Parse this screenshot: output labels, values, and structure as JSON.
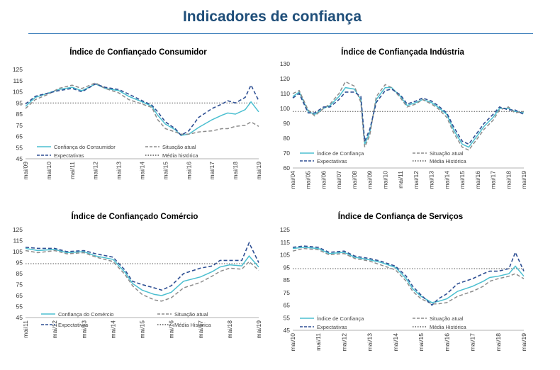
{
  "page": {
    "title": "Indicadores de confiança"
  },
  "colors": {
    "headline": "#1f4e79",
    "rule": "#2e75b6",
    "index": "#4bbfd0",
    "current": "#8c8c8c",
    "expectations": "#2e4f93",
    "average": "#595959"
  },
  "chart_data": [
    {
      "type": "line",
      "title": "Índice de Confiançado Consumidor",
      "ylim": [
        45,
        125
      ],
      "yticks": [
        45,
        55,
        65,
        75,
        85,
        95,
        105,
        115,
        125
      ],
      "xticks": [
        "mai/09",
        "mai/10",
        "mai/11",
        "mai/12",
        "mai/13",
        "mai/14",
        "mai/15",
        "mai/16",
        "mai/17",
        "mai/18",
        "mai/19"
      ],
      "x_range": [
        2009.33,
        2019.33
      ],
      "reference": {
        "name": "Média histórica",
        "value": 95
      },
      "series": [
        {
          "name": "Confiança do Consumidor",
          "style": "solid",
          "color": "#4bbfd0",
          "x": [
            2009.33,
            2009.75,
            2010.33,
            2010.75,
            2011.33,
            2011.75,
            2012.33,
            2012.75,
            2013.33,
            2013.75,
            2014.33,
            2014.75,
            2015.0,
            2015.33,
            2015.75,
            2016.0,
            2016.33,
            2016.75,
            2017.33,
            2017.75,
            2018.0,
            2018.33,
            2018.75,
            2019.0,
            2019.33
          ],
          "values": [
            92,
            100,
            104,
            107,
            109,
            106,
            112,
            108,
            106,
            101,
            96,
            92,
            84,
            76,
            71,
            66,
            67,
            73,
            80,
            84,
            86,
            85,
            89,
            96,
            87
          ]
        },
        {
          "name": "Situação atual",
          "style": "dashed",
          "color": "#8c8c8c",
          "x": [
            2009.33,
            2009.75,
            2010.33,
            2010.75,
            2011.33,
            2011.75,
            2012.33,
            2012.75,
            2013.33,
            2013.75,
            2014.33,
            2014.75,
            2015.0,
            2015.33,
            2015.75,
            2016.0,
            2016.33,
            2016.75,
            2017.33,
            2017.75,
            2018.0,
            2018.33,
            2018.75,
            2019.0,
            2019.33
          ],
          "values": [
            90,
            98,
            103,
            108,
            111,
            108,
            113,
            108,
            104,
            98,
            94,
            91,
            80,
            72,
            69,
            67,
            67,
            69,
            70,
            72,
            72,
            74,
            75,
            78,
            74
          ]
        },
        {
          "name": "Expectativas",
          "style": "dashed",
          "color": "#2e4f93",
          "x": [
            2009.33,
            2009.75,
            2010.33,
            2010.75,
            2011.33,
            2011.75,
            2012.33,
            2012.75,
            2013.33,
            2013.75,
            2014.33,
            2014.75,
            2015.0,
            2015.33,
            2015.75,
            2016.0,
            2016.33,
            2016.75,
            2017.33,
            2017.75,
            2018.0,
            2018.33,
            2018.75,
            2019.0,
            2019.33
          ],
          "values": [
            94,
            101,
            104,
            106,
            108,
            105,
            112,
            109,
            107,
            103,
            97,
            93,
            87,
            78,
            72,
            66,
            70,
            82,
            90,
            94,
            97,
            95,
            100,
            111,
            97
          ]
        }
      ]
    },
    {
      "type": "line",
      "title": "Índice de Confiançada Indústria",
      "ylim": [
        60,
        130
      ],
      "yticks": [
        60,
        70,
        80,
        90,
        100,
        110,
        120,
        130
      ],
      "xticks": [
        "mai/04",
        "mai/05",
        "mai/06",
        "mai/07",
        "mai/08",
        "mai/09",
        "mai/10",
        "mai/11",
        "mai/12",
        "mai/13",
        "mai/14",
        "mai/15",
        "mai/16",
        "mai/17",
        "mai/18",
        "mai/19"
      ],
      "x_range": [
        2004.33,
        2019.33
      ],
      "reference": {
        "name": "Média Histórica",
        "value": 98
      },
      "series": [
        {
          "name": "Índice de Confiança",
          "style": "solid",
          "color": "#4bbfd0",
          "x": [
            2004.33,
            2004.75,
            2005.33,
            2005.75,
            2006.33,
            2006.75,
            2007.33,
            2007.75,
            2008.33,
            2008.75,
            2009.0,
            2009.33,
            2009.75,
            2010.33,
            2010.75,
            2011.33,
            2011.75,
            2012.33,
            2012.75,
            2013.33,
            2013.75,
            2014.33,
            2014.75,
            2015.33,
            2015.75,
            2016.33,
            2016.75,
            2017.33,
            2017.75,
            2018.33,
            2018.75,
            2019.33
          ],
          "values": [
            108,
            111,
            98,
            96,
            100,
            102,
            108,
            114,
            113,
            106,
            76,
            84,
            106,
            114,
            114,
            108,
            102,
            104,
            106,
            104,
            101,
            96,
            86,
            76,
            74,
            82,
            88,
            94,
            100,
            100,
            98,
            97
          ]
        },
        {
          "name": "Situação atual",
          "style": "dashed",
          "color": "#8c8c8c",
          "x": [
            2004.33,
            2004.75,
            2005.33,
            2005.75,
            2006.33,
            2006.75,
            2007.33,
            2007.75,
            2008.33,
            2008.75,
            2009.0,
            2009.33,
            2009.75,
            2010.33,
            2010.75,
            2011.33,
            2011.75,
            2012.33,
            2012.75,
            2013.33,
            2013.75,
            2014.33,
            2014.75,
            2015.33,
            2015.75,
            2016.33,
            2016.75,
            2017.33,
            2017.75,
            2018.33,
            2018.75,
            2019.33
          ],
          "values": [
            110,
            112,
            99,
            95,
            100,
            103,
            110,
            118,
            115,
            104,
            74,
            82,
            108,
            116,
            114,
            107,
            101,
            103,
            106,
            103,
            100,
            94,
            84,
            74,
            72,
            80,
            86,
            92,
            99,
            101,
            97,
            98
          ]
        },
        {
          "name": "Expectativas",
          "style": "dashed",
          "color": "#2e4f93",
          "x": [
            2004.33,
            2004.75,
            2005.33,
            2005.75,
            2006.33,
            2006.75,
            2007.33,
            2007.75,
            2008.33,
            2008.75,
            2009.0,
            2009.33,
            2009.75,
            2010.33,
            2010.75,
            2011.33,
            2011.75,
            2012.33,
            2012.75,
            2013.33,
            2013.75,
            2014.33,
            2014.75,
            2015.33,
            2015.75,
            2016.33,
            2016.75,
            2017.33,
            2017.75,
            2018.33,
            2018.75,
            2019.33
          ],
          "values": [
            107,
            110,
            97,
            97,
            101,
            101,
            106,
            111,
            111,
            108,
            78,
            86,
            104,
            112,
            113,
            109,
            103,
            105,
            107,
            105,
            102,
            97,
            88,
            78,
            76,
            84,
            90,
            96,
            101,
            99,
            99,
            96
          ]
        }
      ]
    },
    {
      "type": "line",
      "title": "Índice de Confiançado Comércio",
      "ylim": [
        45,
        125
      ],
      "yticks": [
        45,
        55,
        65,
        75,
        85,
        95,
        105,
        115,
        125
      ],
      "xticks": [
        "mai/11",
        "mai/12",
        "mai/13",
        "mai/14",
        "mai/15",
        "mai/16",
        "mai/17",
        "mai/18",
        "mai/19"
      ],
      "x_range": [
        2011.33,
        2019.33
      ],
      "reference": {
        "name": "Média Histórica",
        "value": 94
      },
      "series": [
        {
          "name": "Confiança do Comércio",
          "style": "solid",
          "color": "#4bbfd0",
          "x": [
            2011.33,
            2011.75,
            2012.33,
            2012.75,
            2013.33,
            2013.75,
            2014.33,
            2014.75,
            2015.0,
            2015.33,
            2015.75,
            2016.0,
            2016.33,
            2016.75,
            2017.33,
            2017.75,
            2018.0,
            2018.33,
            2018.75,
            2019.0,
            2019.33
          ],
          "values": [
            108,
            106,
            107,
            104,
            105,
            101,
            98,
            86,
            76,
            70,
            66,
            65,
            68,
            78,
            82,
            87,
            91,
            93,
            92,
            101,
            91
          ]
        },
        {
          "name": "Situação atual",
          "style": "dashed",
          "color": "#8c8c8c",
          "x": [
            2011.33,
            2011.75,
            2012.33,
            2012.75,
            2013.33,
            2013.75,
            2014.33,
            2014.75,
            2015.0,
            2015.33,
            2015.75,
            2016.0,
            2016.33,
            2016.75,
            2017.33,
            2017.75,
            2018.0,
            2018.33,
            2018.75,
            2019.0,
            2019.33
          ],
          "values": [
            106,
            104,
            106,
            103,
            104,
            100,
            96,
            84,
            74,
            66,
            61,
            60,
            63,
            72,
            77,
            83,
            87,
            90,
            89,
            96,
            88
          ]
        },
        {
          "name": "Expectativas",
          "style": "dashed",
          "color": "#2e4f93",
          "x": [
            2011.33,
            2011.75,
            2012.33,
            2012.75,
            2013.33,
            2013.75,
            2014.33,
            2014.75,
            2015.0,
            2015.33,
            2015.75,
            2016.0,
            2016.33,
            2016.75,
            2017.33,
            2017.75,
            2018.0,
            2018.33,
            2018.75,
            2019.0,
            2019.33
          ],
          "values": [
            109,
            108,
            108,
            105,
            106,
            103,
            100,
            88,
            78,
            75,
            72,
            70,
            74,
            85,
            90,
            92,
            97,
            97,
            97,
            113,
            95
          ]
        }
      ]
    },
    {
      "type": "line",
      "title": "Índice de Confiança de Serviços",
      "ylim": [
        45,
        125
      ],
      "yticks": [
        45,
        55,
        65,
        75,
        85,
        95,
        105,
        115,
        125
      ],
      "xticks": [
        "mai/10",
        "mai/11",
        "mai/12",
        "mai/13",
        "mai/14",
        "mai/15",
        "mai/16",
        "mai/17",
        "mai/18",
        "mai/19"
      ],
      "x_range": [
        2010.33,
        2019.33
      ],
      "reference": {
        "name": "Média Histórica",
        "value": 94
      },
      "series": [
        {
          "name": "Índice de Confiança",
          "style": "solid",
          "color": "#4bbfd0",
          "x": [
            2010.33,
            2010.75,
            2011.33,
            2011.75,
            2012.33,
            2012.75,
            2013.33,
            2013.75,
            2014.33,
            2014.75,
            2015.0,
            2015.33,
            2015.75,
            2016.0,
            2016.33,
            2016.75,
            2017.33,
            2017.75,
            2018.0,
            2018.33,
            2018.75,
            2019.0,
            2019.33
          ],
          "values": [
            110,
            111,
            110,
            106,
            107,
            103,
            101,
            99,
            95,
            86,
            78,
            72,
            67,
            68,
            70,
            76,
            80,
            84,
            87,
            88,
            90,
            96,
            88
          ]
        },
        {
          "name": "Situação atual",
          "style": "dashed",
          "color": "#8c8c8c",
          "x": [
            2010.33,
            2010.75,
            2011.33,
            2011.75,
            2012.33,
            2012.75,
            2013.33,
            2013.75,
            2014.33,
            2014.75,
            2015.0,
            2015.33,
            2015.75,
            2016.0,
            2016.33,
            2016.75,
            2017.33,
            2017.75,
            2018.0,
            2018.33,
            2018.75,
            2019.0,
            2019.33
          ],
          "values": [
            108,
            110,
            109,
            105,
            106,
            102,
            100,
            97,
            93,
            84,
            76,
            70,
            66,
            66,
            67,
            72,
            76,
            80,
            84,
            86,
            88,
            90,
            86
          ]
        },
        {
          "name": "Expectativas",
          "style": "dashed",
          "color": "#2e4f93",
          "x": [
            2010.33,
            2010.75,
            2011.33,
            2011.75,
            2012.33,
            2012.75,
            2013.33,
            2013.75,
            2014.33,
            2014.75,
            2015.0,
            2015.33,
            2015.75,
            2016.0,
            2016.33,
            2016.75,
            2017.33,
            2017.75,
            2018.0,
            2018.33,
            2018.75,
            2019.0,
            2019.33
          ],
          "values": [
            111,
            112,
            111,
            107,
            108,
            104,
            102,
            100,
            96,
            88,
            80,
            73,
            65,
            70,
            74,
            82,
            86,
            90,
            92,
            92,
            94,
            107,
            92
          ]
        }
      ]
    }
  ]
}
